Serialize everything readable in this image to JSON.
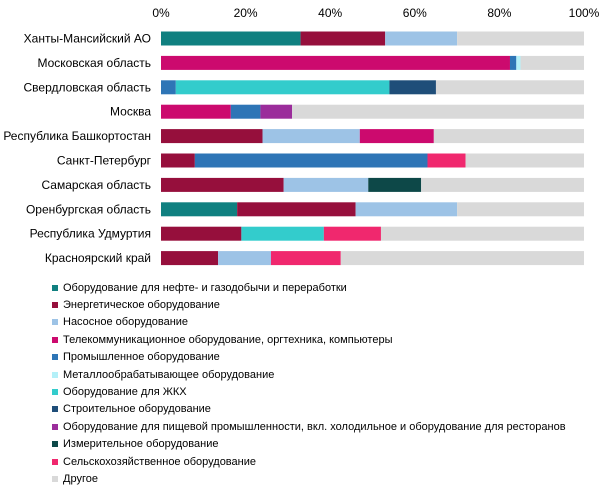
{
  "chart_data": {
    "type": "bar",
    "orientation": "horizontal",
    "stacked": true,
    "percent": true,
    "title": "",
    "xlabel": "",
    "ylabel": "",
    "xlim": [
      0,
      100
    ],
    "x_ticks": [
      "0%",
      "20%",
      "40%",
      "60%",
      "80%",
      "100%"
    ],
    "x_tick_values": [
      0,
      20,
      40,
      60,
      80,
      100
    ],
    "grid": false,
    "legend_position": "bottom",
    "categories": [
      "Ханты-Мансийский АО",
      "Московская область",
      "Свердловская область",
      "Москва",
      "Республика Башкортостан",
      "Санкт-Петербург",
      "Самарская область",
      "Оренбургская область",
      "Республика Удмуртия",
      "Красноярский край"
    ],
    "series": [
      {
        "name": "Оборудование для нефте- и газодобычи и переработки",
        "color": "#108080",
        "values": [
          33,
          0,
          0,
          0,
          0,
          0,
          0,
          18,
          0,
          0
        ]
      },
      {
        "name": "Энергетическое оборудование",
        "color": "#960f3c",
        "values": [
          20,
          0,
          0,
          0,
          24,
          8,
          29,
          28,
          19,
          13.5
        ]
      },
      {
        "name": "Насосное оборудование",
        "color": "#9dc3e6",
        "values": [
          17,
          0,
          0,
          0,
          23,
          0,
          20,
          24,
          0,
          12.5
        ]
      },
      {
        "name": "Телекоммуникационное оборудование, оргтехника, компьютеры",
        "color": "#cc0a6e",
        "values": [
          0,
          82.5,
          0,
          16.5,
          17.5,
          0,
          0,
          0,
          0,
          0
        ]
      },
      {
        "name": "Промышленное оборудование",
        "color": "#2e75b6",
        "values": [
          0,
          1.5,
          3.5,
          7,
          0,
          55,
          0,
          0,
          0,
          0
        ]
      },
      {
        "name": "Металлообрабатывающее оборудование",
        "color": "#b4f0f8",
        "values": [
          0,
          1,
          0,
          0,
          0,
          0,
          0,
          0,
          0,
          0
        ]
      },
      {
        "name": "Оборудование для ЖКХ",
        "color": "#33cccc",
        "values": [
          0,
          0,
          50.5,
          0,
          0,
          0,
          0,
          0,
          19.5,
          0
        ]
      },
      {
        "name": "Строительное оборудование",
        "color": "#1f4e79",
        "values": [
          0,
          0,
          11,
          0,
          0,
          0,
          0,
          0,
          0,
          0
        ]
      },
      {
        "name": "Оборудование для пищевой промышленности, вкл. холодильное и оборудование для ресторанов",
        "color": "#9b2d9b",
        "values": [
          0,
          0,
          0,
          7.5,
          0,
          0,
          0,
          0,
          0,
          0
        ]
      },
      {
        "name": "Измерительное оборудование",
        "color": "#0d4848",
        "values": [
          0,
          0,
          0,
          0,
          0,
          0,
          12.5,
          0,
          0,
          0
        ]
      },
      {
        "name": "Сельскохозяйственное оборудование",
        "color": "#f0286e",
        "values": [
          0,
          0,
          0,
          0,
          0,
          9,
          0,
          0,
          13.5,
          16.5
        ]
      },
      {
        "name": "Другое",
        "color": "#d9d9d9",
        "values": [
          30,
          15,
          35,
          69,
          35.5,
          28,
          38.5,
          30,
          48,
          57.5
        ]
      }
    ]
  }
}
